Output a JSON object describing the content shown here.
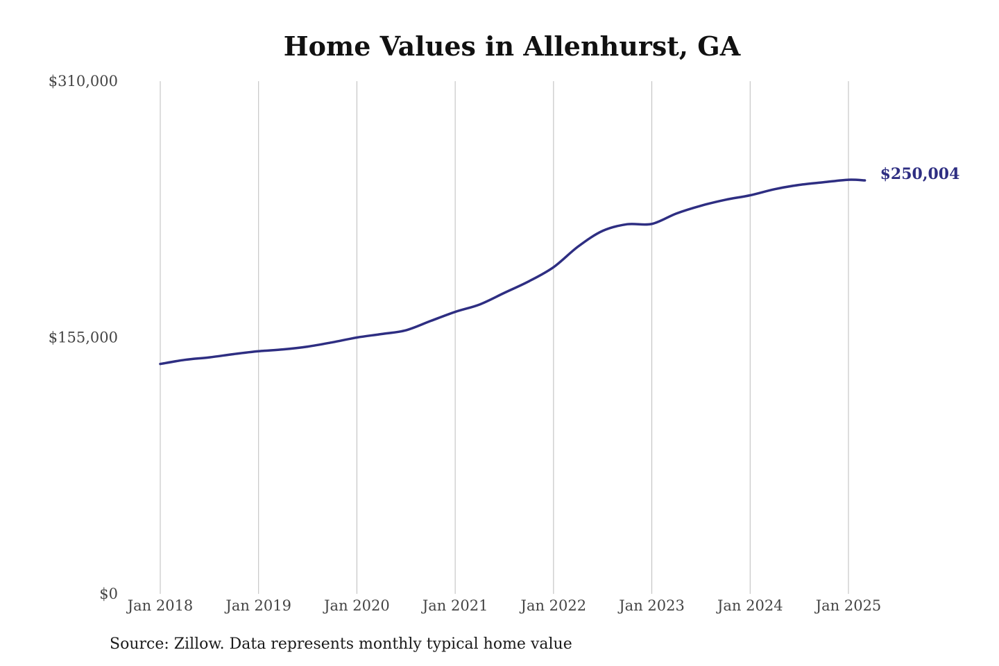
{
  "chart_data": {
    "type": "line",
    "title": "Home Values in Allenhurst, GA",
    "source": "Source: Zillow. Data represents monthly typical home value",
    "xlabel": "",
    "ylabel": "",
    "ylim": [
      0,
      310000
    ],
    "y_ticks": [
      {
        "value": 0,
        "label": "$0"
      },
      {
        "value": 155000,
        "label": "$155,000"
      },
      {
        "value": 310000,
        "label": "$310,000"
      }
    ],
    "x_ticks": [
      {
        "value": "2018-01",
        "label": "Jan 2018"
      },
      {
        "value": "2019-01",
        "label": "Jan 2019"
      },
      {
        "value": "2020-01",
        "label": "Jan 2020"
      },
      {
        "value": "2021-01",
        "label": "Jan 2021"
      },
      {
        "value": "2022-01",
        "label": "Jan 2022"
      },
      {
        "value": "2023-01",
        "label": "Jan 2023"
      },
      {
        "value": "2024-01",
        "label": "Jan 2024"
      },
      {
        "value": "2025-01",
        "label": "Jan 2025"
      }
    ],
    "grid": {
      "vertical": true,
      "horizontal": false
    },
    "line_color": "#2e2e82",
    "grid_color": "#bbbbbb",
    "end_label": "$250,004",
    "series": [
      {
        "x": [
          "2018-01",
          "2018-04",
          "2018-07",
          "2018-10",
          "2019-01",
          "2019-04",
          "2019-07",
          "2019-10",
          "2020-01",
          "2020-04",
          "2020-07",
          "2020-10",
          "2021-01",
          "2021-04",
          "2021-07",
          "2021-10",
          "2022-01",
          "2022-04",
          "2022-07",
          "2022-10",
          "2023-01",
          "2023-04",
          "2023-07",
          "2023-10",
          "2024-01",
          "2024-04",
          "2024-07",
          "2024-10",
          "2025-01",
          "2025-03"
        ],
        "values": [
          139000,
          141500,
          143000,
          145000,
          146700,
          147800,
          149500,
          152100,
          155000,
          157100,
          159400,
          165000,
          170500,
          175000,
          182000,
          189000,
          197500,
          210000,
          219500,
          223500,
          223700,
          230000,
          234700,
          238300,
          241000,
          244700,
          247300,
          248900,
          250400,
          250004
        ]
      }
    ]
  }
}
